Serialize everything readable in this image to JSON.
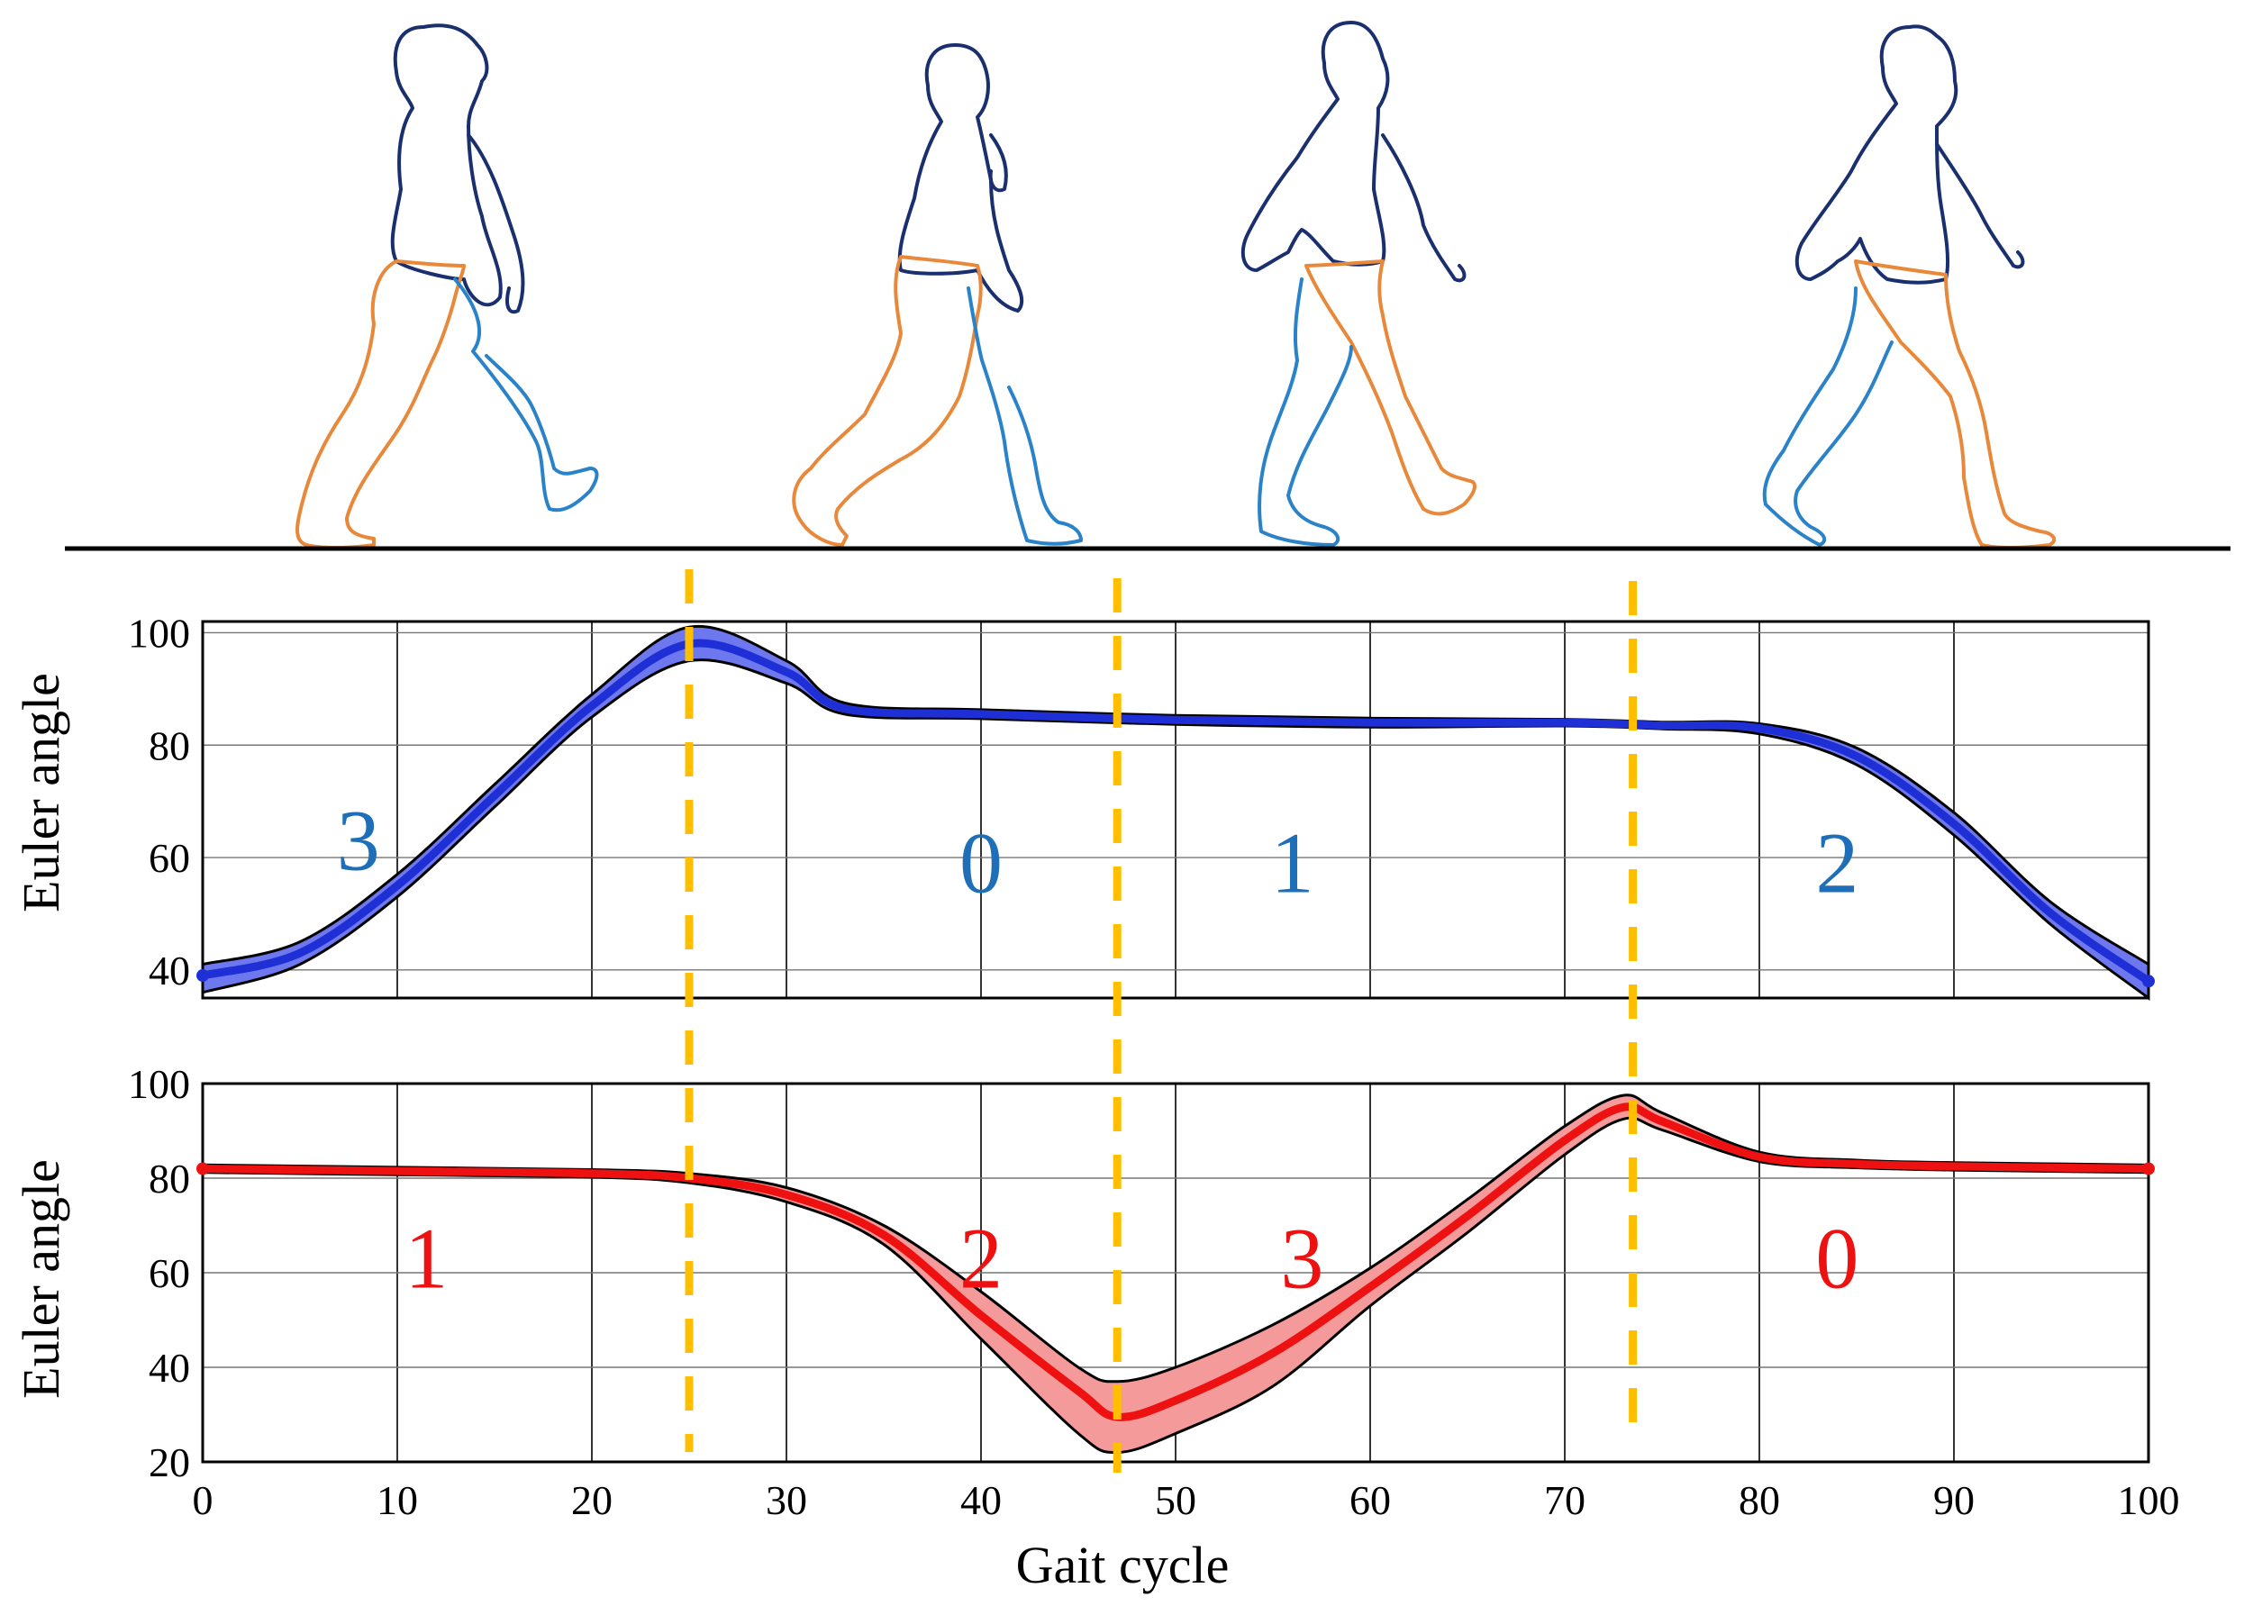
{
  "colors": {
    "top_mean": "#1f2fd6",
    "top_band": "#6e78ee",
    "top_phase_label": "#1f6fb8",
    "bottom_mean": "#ee1111",
    "bottom_band": "#f59a9a",
    "bottom_phase_label": "#ee1111",
    "phase_marker": "#ffbf00",
    "ground": "#000000",
    "silhouette_body": "#1a2f6e",
    "silhouette_leg_a": "#e8883a",
    "silhouette_leg_b": "#2a82c8"
  },
  "illustration": {
    "silhouettes": [
      "walking-silhouette-1",
      "walking-silhouette-2",
      "walking-silhouette-3",
      "walking-silhouette-4"
    ]
  },
  "phase_markers_x": [
    25,
    47,
    73.5
  ],
  "chart_data": [
    {
      "type": "line",
      "panel": "top",
      "xlabel": "",
      "ylabel": "Euler angle",
      "xlim": [
        0,
        100
      ],
      "ylim": [
        35,
        102
      ],
      "yticks": [
        40,
        60,
        80,
        100
      ],
      "yticklabels": [
        "40",
        "60",
        "80",
        "100"
      ],
      "xticks": [
        0,
        10,
        20,
        30,
        40,
        50,
        60,
        70,
        80,
        90,
        100
      ],
      "grid": true,
      "series": [
        {
          "x": [
            0,
            5,
            10,
            15,
            20,
            25,
            30,
            33,
            40,
            50,
            60,
            70,
            75,
            80,
            85,
            90,
            95,
            100
          ],
          "mean": [
            39,
            43,
            55,
            71,
            87,
            98,
            93,
            86.5,
            85.5,
            84.5,
            84,
            84,
            83.5,
            83,
            78,
            66,
            50,
            38
          ],
          "upper": [
            41,
            45,
            57,
            73,
            89,
            101,
            95,
            87.5,
            86.3,
            85.3,
            84.8,
            84.6,
            84.1,
            83.8,
            79.5,
            68,
            52,
            41
          ],
          "lower": [
            36,
            41,
            53,
            69,
            85,
            95,
            91,
            85.5,
            84.7,
            83.7,
            83.2,
            83.4,
            82.9,
            82,
            76.5,
            64,
            48,
            35
          ]
        }
      ],
      "phase_labels": [
        {
          "text": "3",
          "x": 8,
          "y": 63
        },
        {
          "text": "0",
          "x": 40,
          "y": 59
        },
        {
          "text": "1",
          "x": 56,
          "y": 59
        },
        {
          "text": "2",
          "x": 84,
          "y": 59
        }
      ]
    },
    {
      "type": "line",
      "panel": "bottom",
      "xlabel": "Gait cycle",
      "ylabel": "Euler angle",
      "xlim": [
        0,
        100
      ],
      "ylim": [
        20,
        100
      ],
      "yticks": [
        20,
        40,
        60,
        80,
        100
      ],
      "yticklabels": [
        "20",
        "40",
        "60",
        "80",
        "100"
      ],
      "xticks": [
        0,
        10,
        20,
        30,
        40,
        50,
        60,
        70,
        80,
        90,
        100
      ],
      "xticklabels": [
        "0",
        "10",
        "20",
        "30",
        "40",
        "50",
        "60",
        "70",
        "80",
        "90",
        "100"
      ],
      "grid": true,
      "series": [
        {
          "x": [
            0,
            10,
            20,
            25,
            30,
            35,
            40,
            45,
            47,
            50,
            55,
            60,
            65,
            70,
            73,
            75,
            80,
            85,
            90,
            100
          ],
          "mean": [
            82,
            81.5,
            81,
            80,
            76.5,
            68,
            51,
            35,
            29.5,
            33,
            43,
            57,
            72,
            88,
            95,
            92,
            84.5,
            83,
            82.5,
            82
          ],
          "upper": [
            82.8,
            82.3,
            81.8,
            81,
            78,
            70,
            56,
            40,
            37,
            40,
            49,
            61,
            75.5,
            91,
            97.5,
            93.8,
            85.5,
            83.8,
            83.3,
            82.8
          ],
          "lower": [
            81.2,
            80.7,
            80.2,
            79,
            75,
            66,
            46,
            26,
            22,
            26,
            36,
            53,
            68.5,
            85,
            92.5,
            90.2,
            83.5,
            82.2,
            81.7,
            81.2
          ]
        }
      ],
      "phase_labels": [
        {
          "text": "1",
          "x": 11.5,
          "y": 63
        },
        {
          "text": "2",
          "x": 40,
          "y": 63
        },
        {
          "text": "3",
          "x": 56.5,
          "y": 63
        },
        {
          "text": "0",
          "x": 84,
          "y": 63
        }
      ]
    }
  ]
}
